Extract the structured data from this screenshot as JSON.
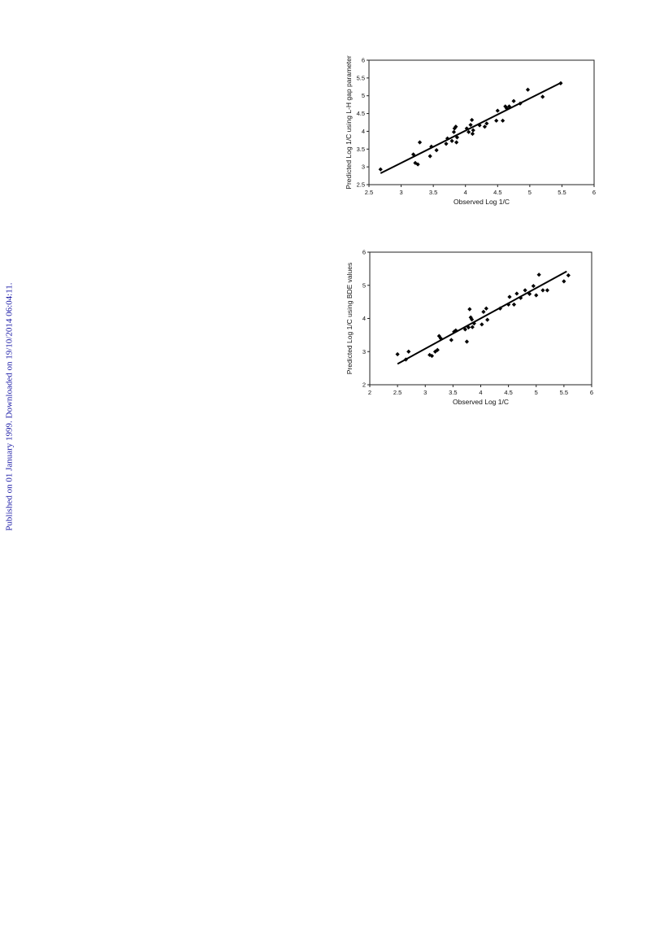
{
  "side_note": "Published on 01 January 1999. Downloaded on 19/10/2014 06:04:11.",
  "chart_data": [
    {
      "type": "scatter",
      "xlabel": "Observed Log 1/C",
      "ylabel": "Predicted Log 1/C using L-H gap parameter",
      "xlim": [
        2.5,
        6
      ],
      "ylim": [
        2.5,
        6
      ],
      "xticks": [
        2.5,
        3,
        3.5,
        4,
        4.5,
        5,
        5.5,
        6
      ],
      "yticks": [
        2.5,
        3,
        3.5,
        4,
        4.5,
        5,
        5.5,
        6
      ],
      "xtick_labels": [
        "2.5",
        "3",
        "3.5",
        "4",
        "4.5",
        "5",
        "5.5",
        "6"
      ],
      "ytick_labels": [
        "2.5",
        "3",
        "3.5",
        "4",
        "4.5",
        "5",
        "5.5",
        "6"
      ],
      "grid": false,
      "points": [
        [
          2.68,
          2.93
        ],
        [
          3.19,
          3.35
        ],
        [
          3.22,
          3.11
        ],
        [
          3.26,
          3.07
        ],
        [
          3.29,
          3.69
        ],
        [
          3.45,
          3.3
        ],
        [
          3.47,
          3.57
        ],
        [
          3.55,
          3.47
        ],
        [
          3.7,
          3.65
        ],
        [
          3.72,
          3.8
        ],
        [
          3.79,
          3.73
        ],
        [
          3.82,
          3.98
        ],
        [
          3.83,
          4.08
        ],
        [
          3.85,
          4.13
        ],
        [
          3.86,
          3.69
        ],
        [
          3.87,
          3.83
        ],
        [
          4.02,
          4.08
        ],
        [
          4.05,
          3.98
        ],
        [
          4.08,
          4.18
        ],
        [
          4.1,
          4.32
        ],
        [
          4.11,
          3.93
        ],
        [
          4.12,
          4.03
        ],
        [
          4.22,
          4.17
        ],
        [
          4.3,
          4.13
        ],
        [
          4.33,
          4.22
        ],
        [
          4.48,
          4.3
        ],
        [
          4.5,
          4.58
        ],
        [
          4.58,
          4.3
        ],
        [
          4.62,
          4.7
        ],
        [
          4.64,
          4.65
        ],
        [
          4.68,
          4.7
        ],
        [
          4.75,
          4.85
        ],
        [
          4.85,
          4.78
        ],
        [
          4.97,
          5.17
        ],
        [
          5.2,
          4.97
        ],
        [
          5.48,
          5.35
        ]
      ],
      "fit_line": [
        [
          2.68,
          2.82
        ],
        [
          5.5,
          5.38
        ]
      ]
    },
    {
      "type": "scatter",
      "xlabel": "Observed Log 1/C",
      "ylabel": "Predicted Log 1/C using BDE values",
      "xlim": [
        2,
        6
      ],
      "ylim": [
        2,
        6
      ],
      "xticks": [
        2,
        2.5,
        3,
        3.5,
        4,
        4.5,
        5,
        5.5,
        6
      ],
      "yticks": [
        2,
        3,
        4,
        5,
        6
      ],
      "xtick_labels": [
        "2",
        "2.5",
        "3",
        "3.5",
        "4",
        "4.5",
        "5",
        "5.5",
        "6"
      ],
      "ytick_labels": [
        "2",
        "3",
        "4",
        "5",
        "6"
      ],
      "grid": false,
      "points": [
        [
          2.5,
          2.92
        ],
        [
          2.65,
          2.76
        ],
        [
          2.7,
          3.0
        ],
        [
          3.08,
          2.9
        ],
        [
          3.12,
          2.87
        ],
        [
          3.18,
          3.0
        ],
        [
          3.22,
          3.05
        ],
        [
          3.25,
          3.47
        ],
        [
          3.28,
          3.4
        ],
        [
          3.47,
          3.35
        ],
        [
          3.52,
          3.6
        ],
        [
          3.55,
          3.64
        ],
        [
          3.72,
          3.67
        ],
        [
          3.75,
          3.3
        ],
        [
          3.78,
          3.73
        ],
        [
          3.8,
          4.28
        ],
        [
          3.82,
          4.03
        ],
        [
          3.84,
          3.97
        ],
        [
          3.85,
          3.74
        ],
        [
          3.88,
          3.85
        ],
        [
          4.02,
          3.82
        ],
        [
          4.05,
          4.2
        ],
        [
          4.1,
          4.3
        ],
        [
          4.12,
          3.96
        ],
        [
          4.35,
          4.3
        ],
        [
          4.5,
          4.42
        ],
        [
          4.52,
          4.65
        ],
        [
          4.6,
          4.42
        ],
        [
          4.65,
          4.75
        ],
        [
          4.72,
          4.62
        ],
        [
          4.8,
          4.85
        ],
        [
          4.88,
          4.74
        ],
        [
          4.95,
          4.98
        ],
        [
          5.0,
          4.7
        ],
        [
          5.05,
          5.32
        ],
        [
          5.12,
          4.85
        ],
        [
          5.2,
          4.85
        ],
        [
          5.5,
          5.12
        ],
        [
          5.58,
          5.3
        ]
      ],
      "fit_line": [
        [
          2.5,
          2.63
        ],
        [
          5.55,
          5.42
        ]
      ]
    }
  ]
}
